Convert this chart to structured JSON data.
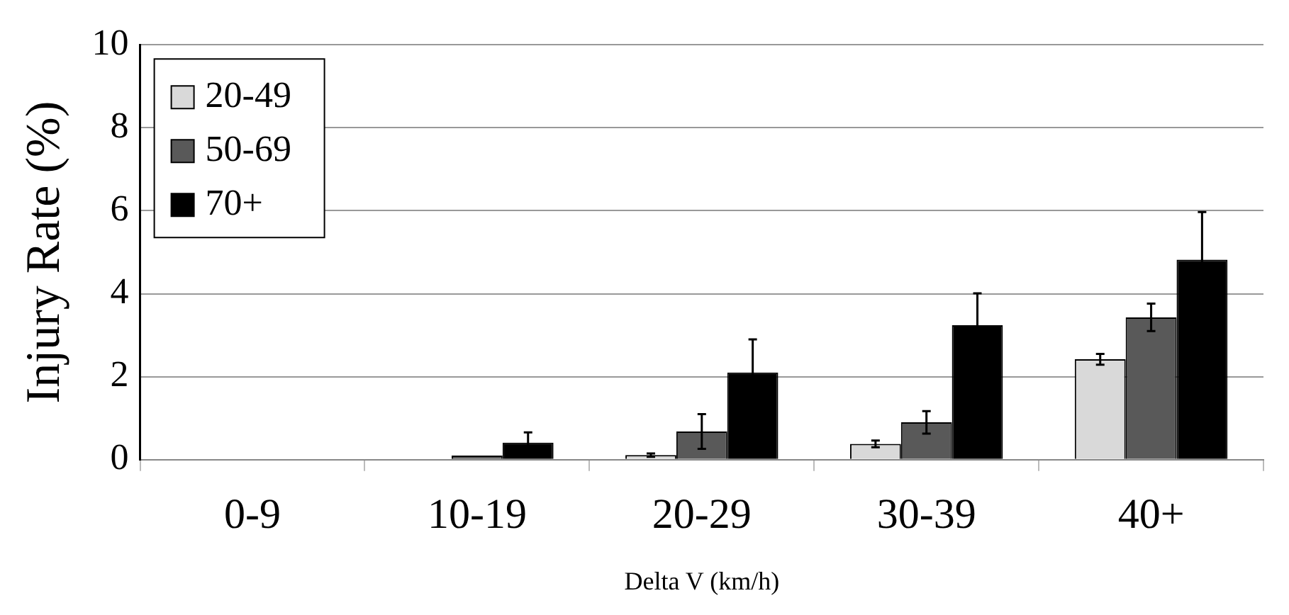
{
  "chart_data": {
    "type": "bar",
    "xlabel": "Delta V (km/h)",
    "ylabel": "Injury Rate (%)",
    "categories": [
      "0-9",
      "10-19",
      "20-29",
      "30-39",
      "40+"
    ],
    "series": [
      {
        "name": "20-49",
        "color": "#d9d9d9",
        "values": [
          0,
          0.02,
          0.11,
          0.38,
          2.42
        ],
        "errors": [
          null,
          null,
          0.04,
          0.08,
          0.13
        ]
      },
      {
        "name": "50-69",
        "color": "#595959",
        "values": [
          0.02,
          0.1,
          0.68,
          0.9,
          3.43
        ],
        "errors": [
          null,
          null,
          0.42,
          0.27,
          0.33
        ]
      },
      {
        "name": "70+",
        "color": "#000000",
        "values": [
          0,
          0.41,
          2.1,
          3.24,
          4.82
        ],
        "errors": [
          null,
          0.25,
          0.8,
          0.77,
          1.15
        ]
      }
    ],
    "ylim": [
      0,
      10
    ],
    "yticks": [
      0,
      2,
      4,
      6,
      8,
      10
    ],
    "grid": "y",
    "legend": "top left"
  }
}
